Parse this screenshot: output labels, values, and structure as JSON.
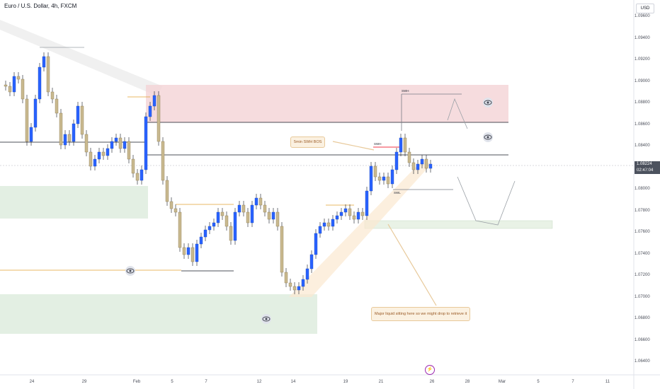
{
  "header": {
    "title": "Euro / U.S. Dollar, 4h, FXCM"
  },
  "axis": {
    "currency": "USD",
    "price_ticks": [
      "1.09600",
      "1.09400",
      "1.09200",
      "1.09000",
      "1.08800",
      "1.08600",
      "1.08400",
      "1.08200",
      "1.08000",
      "1.07800",
      "1.07600",
      "1.07400",
      "1.07200",
      "1.07000",
      "1.06800",
      "1.06600",
      "1.06400"
    ],
    "current_price": "1.08224",
    "countdown": "02:47:04",
    "time_ticks": [
      "24",
      "29",
      "Feb",
      "5",
      "7",
      "12",
      "14",
      "19",
      "21",
      "26",
      "28",
      "Mar",
      "5",
      "7",
      "11"
    ]
  },
  "annotations": {
    "bos_note": "5min SWH BOS",
    "liquidity_note": "Major liquid sitting here so we might drop to retrieve it",
    "swh_top": "SWH",
    "swh_mid": "SWH",
    "swl": "SWL"
  },
  "colors": {
    "bull": "#2962ff",
    "bear": "#1c3a5e",
    "supply_zone": "#f4d3d6",
    "demand_zone": "#e3efe3",
    "current_price_bg": "#4c525e"
  },
  "icons": [
    "eye-icon",
    "lightning-icon"
  ]
}
